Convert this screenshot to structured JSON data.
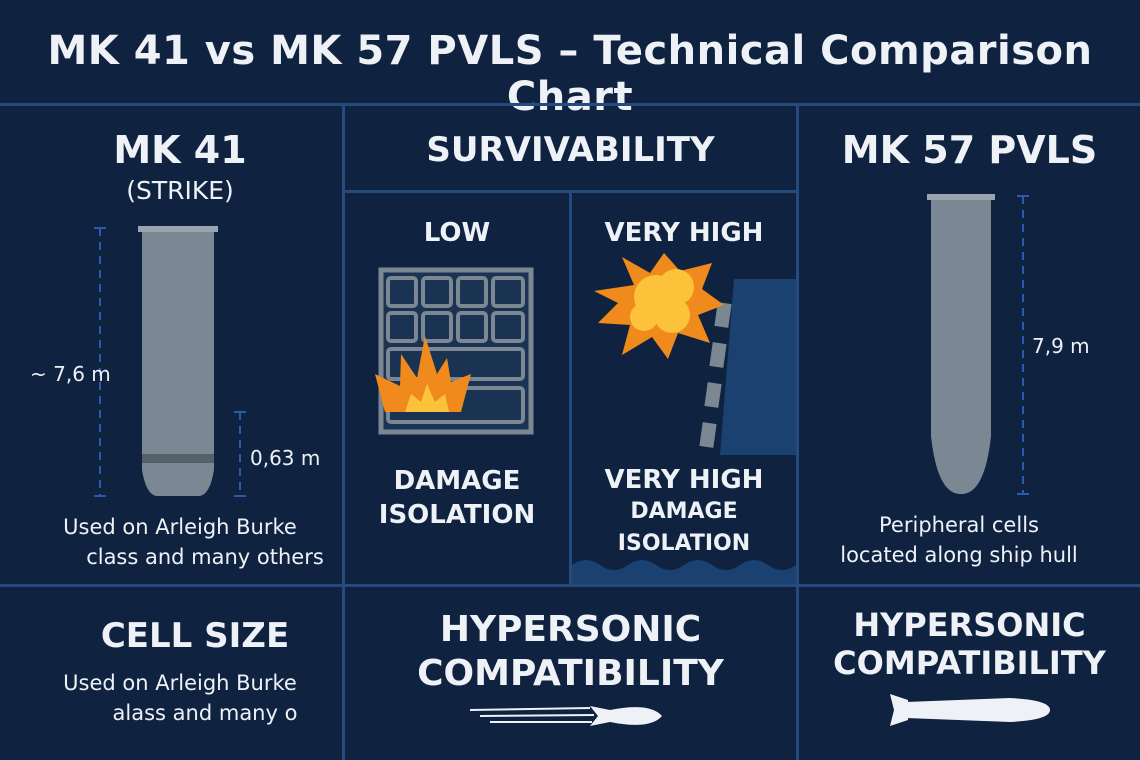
{
  "title": "MK 41 vs MK 57 PVLS – Technical Comparison Chart",
  "mk41": {
    "heading": "MK 41",
    "subheading": "(STRIKE)",
    "height_label": "~ 7,6 m",
    "width_label": "0,63 m",
    "caption_line1": "Used on Arleigh Burke",
    "caption_line2": "class and many others"
  },
  "survivability": {
    "heading": "SURVIVABILITY",
    "left": {
      "level": "LOW",
      "label_line1": "DAMAGE",
      "label_line2": "ISOLATION"
    },
    "right": {
      "level": "VERY HIGH",
      "label_line1": "VERY HIGH",
      "label_line2": "DAMAGE ISOLATION"
    }
  },
  "mk57": {
    "heading": "MK 57 PVLS",
    "height_label": "7,9 m",
    "caption_line1": "Peripheral cells",
    "caption_line2": "located along ship hull"
  },
  "bottom": {
    "cell_size": {
      "heading": "CELL SIZE",
      "caption_line1": "Used on Arleigh Burke",
      "caption_line2": "alass and many o"
    },
    "hypersonic_center": {
      "line1": "HYPERSONIC",
      "line2": "COMPATIBILITY"
    },
    "hypersonic_right": {
      "line1": "HYPERSONIC",
      "line2": "COMPATIBILITY"
    }
  },
  "colors": {
    "background": "#0f2341",
    "divider": "#244a7e",
    "canister": "#7b8793",
    "fire_orange": "#f08a1c",
    "fire_yellow": "#fcc23a",
    "ship_hull": "#1a4170"
  },
  "icons": [
    "fire-icon",
    "explosion-icon",
    "missile-icon",
    "rocket-icon"
  ]
}
